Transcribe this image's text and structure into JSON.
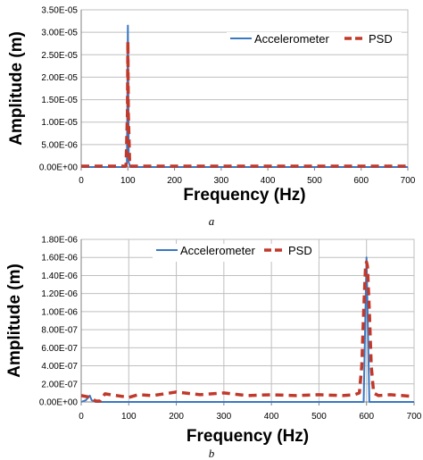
{
  "colors": {
    "accelerometer": "#3a78c2",
    "psd": "#c0392b",
    "grid": "#bfbfbf",
    "axis": "#000000"
  },
  "chart_data": [
    {
      "type": "line",
      "caption": "a",
      "xlabel": "Frequency (Hz)",
      "ylabel": "Amplitude (m)",
      "xlim": [
        0,
        700
      ],
      "ylim": [
        0,
        3.5e-05
      ],
      "x_ticks": [
        0,
        100,
        200,
        300,
        400,
        500,
        600,
        700
      ],
      "x_tick_labels": [
        "0",
        "100",
        "200",
        "300",
        "400",
        "500",
        "600",
        "700"
      ],
      "y_ticks": [
        0,
        5e-06,
        1e-05,
        1.5e-05,
        2e-05,
        2.5e-05,
        3e-05,
        3.5e-05
      ],
      "y_tick_labels": [
        "0.00E+00",
        "5.00E-06",
        "1.00E-05",
        "1.50E-05",
        "2.00E-05",
        "2.50E-05",
        "3.00E-05",
        "3.50E-05"
      ],
      "grid": "horizontal",
      "legend_position": "top-right",
      "series": [
        {
          "name": "Accelerometer",
          "style": "solid",
          "x": [
            0,
            95,
            98,
            100,
            102,
            105,
            700
          ],
          "y": [
            0,
            0,
            1e-06,
            3.15e-05,
            1e-06,
            0,
            0
          ]
        },
        {
          "name": "PSD",
          "style": "dashed",
          "x": [
            0,
            96,
            99,
            100,
            101,
            104,
            700
          ],
          "y": [
            2e-07,
            2e-07,
            1.2e-05,
            2.8e-05,
            1.2e-05,
            2e-07,
            2e-07
          ]
        }
      ]
    },
    {
      "type": "line",
      "caption": "b",
      "xlabel": "Frequency (Hz)",
      "ylabel": "Amplitude (m)",
      "xlim": [
        0,
        700
      ],
      "ylim": [
        0,
        1.8e-06
      ],
      "x_ticks": [
        0,
        100,
        200,
        300,
        400,
        500,
        600,
        700
      ],
      "x_tick_labels": [
        "0",
        "100",
        "200",
        "300",
        "400",
        "500",
        "600",
        "700"
      ],
      "y_ticks": [
        0,
        2e-07,
        4e-07,
        6e-07,
        8e-07,
        1e-06,
        1.2e-06,
        1.4e-06,
        1.6e-06,
        1.8e-06
      ],
      "y_tick_labels": [
        "0.00E+00",
        "2.00E-07",
        "4.00E-07",
        "6.00E-07",
        "8.00E-07",
        "1.00E-06",
        "1.20E-06",
        "1.40E-06",
        "1.60E-06",
        "1.80E-06"
      ],
      "grid": "both",
      "legend_position": "top-center",
      "series": [
        {
          "name": "Accelerometer",
          "style": "solid",
          "x": [
            0,
            10,
            18,
            22,
            30,
            40,
            590,
            594,
            600,
            606,
            610,
            700
          ],
          "y": [
            0,
            2e-08,
            7e-08,
            2e-08,
            0,
            0,
            0,
            0,
            1.6e-06,
            0,
            0,
            0
          ]
        },
        {
          "name": "PSD",
          "style": "dashed",
          "x": [
            0,
            10,
            20,
            30,
            40,
            50,
            100,
            120,
            150,
            200,
            250,
            300,
            350,
            400,
            450,
            500,
            550,
            575,
            585,
            590,
            594,
            598,
            600,
            602,
            606,
            610,
            615,
            625,
            650,
            700
          ],
          "y": [
            7e-08,
            6e-08,
            5e-08,
            1e-08,
            1e-08,
            9e-08,
            5e-08,
            8e-08,
            7e-08,
            1.1e-07,
            8e-08,
            1e-07,
            7e-08,
            8e-08,
            7e-08,
            8e-08,
            7e-08,
            8e-08,
            1e-07,
            4e-07,
            1e-06,
            1.5e-06,
            1.55e-06,
            1.5e-06,
            1e-06,
            4e-07,
            1e-07,
            7e-08,
            8e-08,
            6e-08
          ]
        }
      ]
    }
  ]
}
